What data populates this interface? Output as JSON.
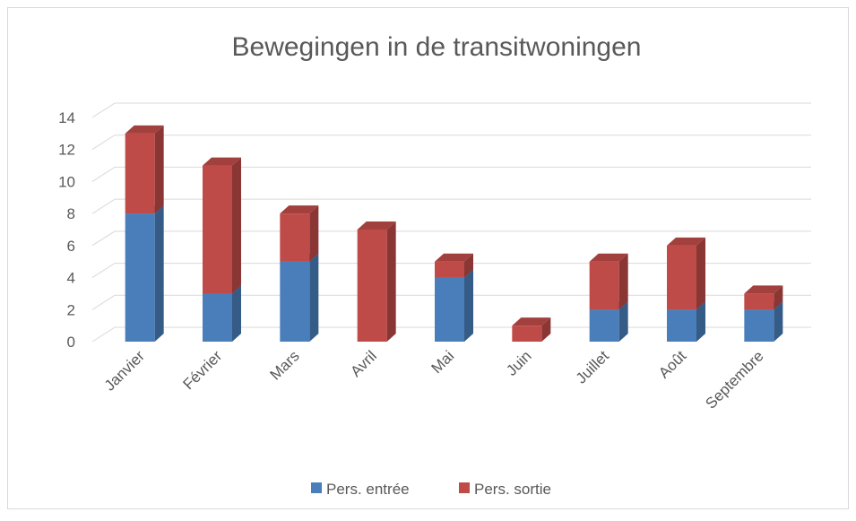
{
  "chart_data": {
    "type": "bar3d_stacked",
    "title": "Bewegingen in de transitwoningen",
    "categories": [
      "Janvier",
      "Février",
      "Mars",
      "Avril",
      "Mai",
      "Juin",
      "Juillet",
      "Août",
      "Septembre"
    ],
    "series": [
      {
        "name": "Pers. entrée",
        "color": "#4a7ebb",
        "values": [
          8,
          3,
          5,
          0,
          4,
          0,
          2,
          2,
          2
        ]
      },
      {
        "name": "Pers. sortie",
        "color": "#be4b48",
        "values": [
          5,
          8,
          3,
          7,
          1,
          1,
          3,
          4,
          1
        ]
      }
    ],
    "ylim": [
      0,
      14
    ],
    "yticks": [
      0,
      2,
      4,
      6,
      8,
      10,
      12,
      14
    ],
    "grid": true,
    "legend": "bottom"
  }
}
